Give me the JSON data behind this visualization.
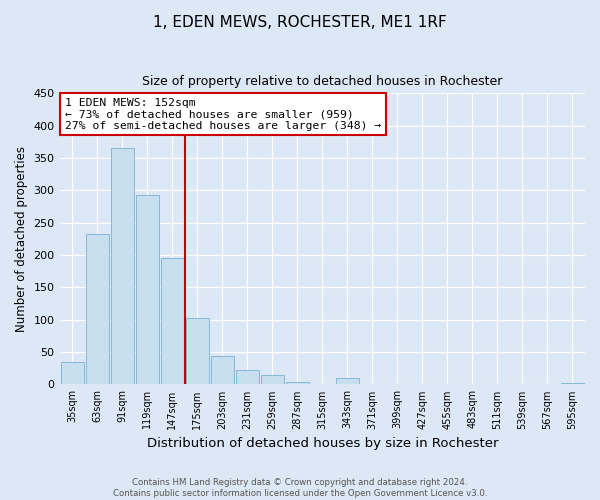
{
  "title": "1, EDEN MEWS, ROCHESTER, ME1 1RF",
  "subtitle": "Size of property relative to detached houses in Rochester",
  "xlabel": "Distribution of detached houses by size in Rochester",
  "ylabel": "Number of detached properties",
  "bar_color": "#c8dff0",
  "bar_edgecolor": "#7ab0d0",
  "background_color": "#dce8f5",
  "fig_facecolor": "#dce8f5",
  "categories": [
    "35sqm",
    "63sqm",
    "91sqm",
    "119sqm",
    "147sqm",
    "175sqm",
    "203sqm",
    "231sqm",
    "259sqm",
    "287sqm",
    "315sqm",
    "343sqm",
    "371sqm",
    "399sqm",
    "427sqm",
    "455sqm",
    "483sqm",
    "511sqm",
    "539sqm",
    "567sqm",
    "595sqm"
  ],
  "values": [
    35,
    233,
    365,
    293,
    196,
    103,
    44,
    22,
    14,
    4,
    0,
    10,
    1,
    0,
    0,
    0,
    0,
    0,
    0,
    0,
    2
  ],
  "ylim": [
    0,
    450
  ],
  "yticks": [
    0,
    50,
    100,
    150,
    200,
    250,
    300,
    350,
    400,
    450
  ],
  "property_line_x": 4.5,
  "annotation_title": "1 EDEN MEWS: 152sqm",
  "annotation_line1": "← 73% of detached houses are smaller (959)",
  "annotation_line2": "27% of semi-detached houses are larger (348) →",
  "annotation_box_color": "#ffffff",
  "annotation_border_color": "#cc0000",
  "property_line_color": "#cc0000",
  "footer1": "Contains HM Land Registry data © Crown copyright and database right 2024.",
  "footer2": "Contains public sector information licensed under the Open Government Licence v3.0."
}
